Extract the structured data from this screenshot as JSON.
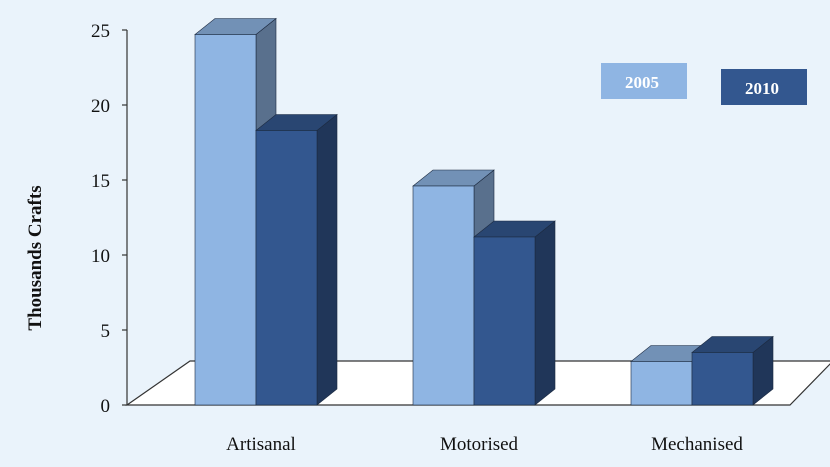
{
  "chart_data": {
    "type": "bar",
    "style": "3d-clustered-column",
    "categories": [
      "Artisanal",
      "Motorised",
      "Mechanised"
    ],
    "series": [
      {
        "name": "2005",
        "values": [
          24.7,
          14.6,
          2.9
        ],
        "color": "#8fb5e3"
      },
      {
        "name": "2010",
        "values": [
          18.3,
          11.2,
          3.5
        ],
        "color": "#33578f"
      }
    ],
    "title": "",
    "xlabel": "",
    "ylabel": "Thousands Crafts",
    "ylim": [
      0,
      25
    ],
    "yticks": [
      "0",
      "5",
      "10",
      "15",
      "20",
      "25"
    ],
    "grid": false,
    "legend": "top-right"
  },
  "colors": {
    "background": "#eaf3fb",
    "floor": "#ffffff",
    "axis": "#333333"
  }
}
